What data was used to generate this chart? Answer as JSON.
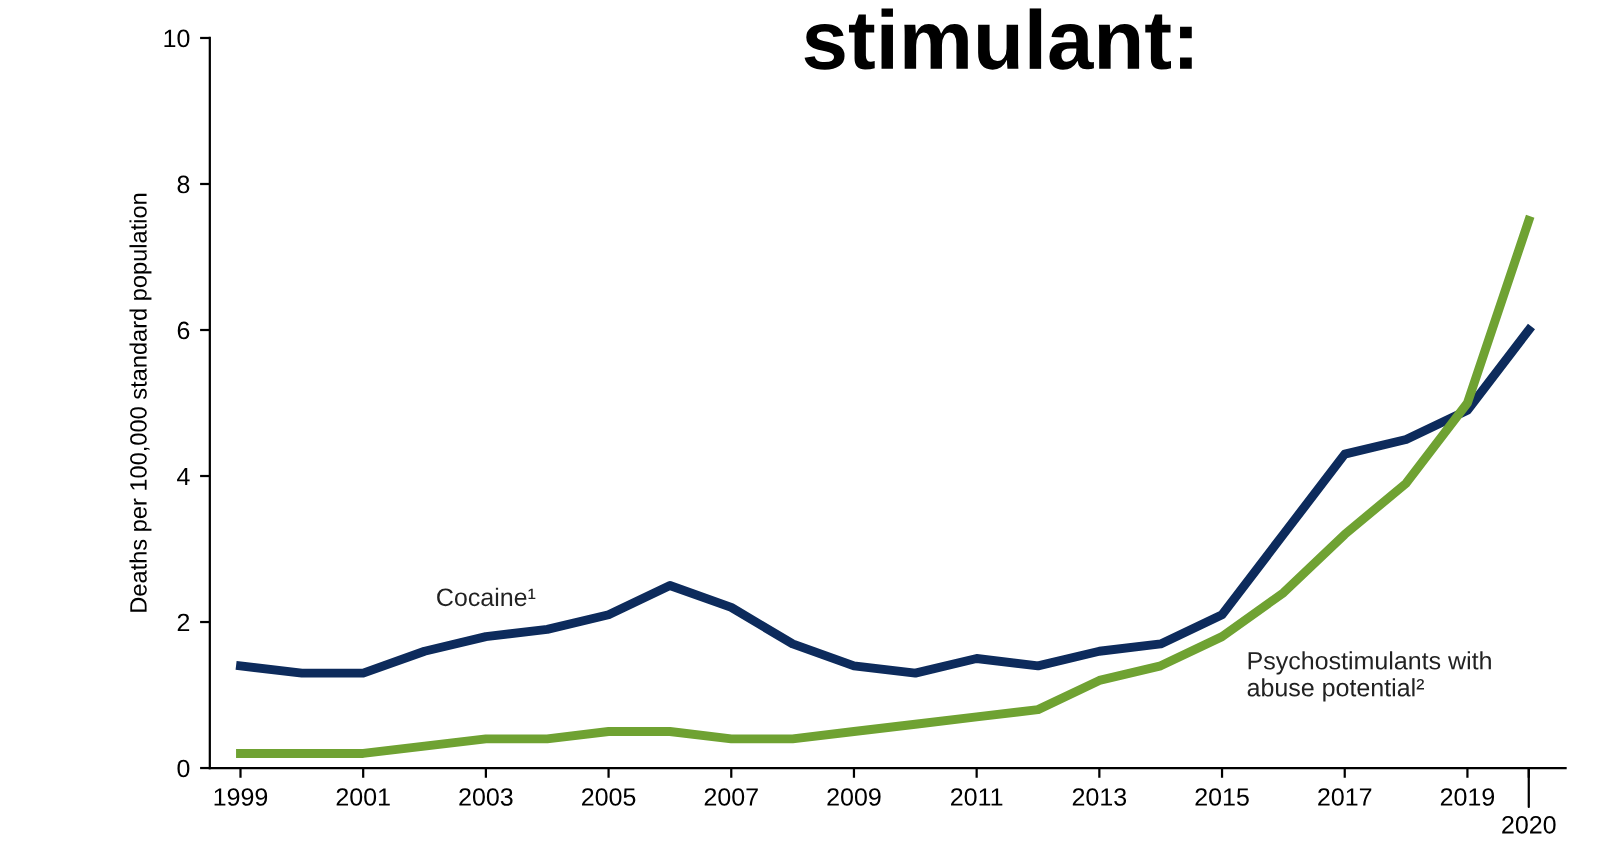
{
  "chart_data": {
    "type": "line",
    "title": "stimulant:",
    "ylabel": "Deaths per 100,000 standard population",
    "x": [
      1999,
      2000,
      2001,
      2002,
      2003,
      2004,
      2005,
      2006,
      2007,
      2008,
      2009,
      2010,
      2011,
      2012,
      2013,
      2014,
      2015,
      2016,
      2017,
      2018,
      2019,
      2020
    ],
    "series": [
      {
        "name": "Cocaine¹",
        "color": "#0d2b5c",
        "values": [
          1.4,
          1.3,
          1.3,
          1.6,
          1.8,
          1.9,
          2.1,
          2.5,
          2.2,
          1.7,
          1.4,
          1.3,
          1.5,
          1.4,
          1.6,
          1.7,
          2.1,
          3.2,
          4.3,
          4.5,
          4.9,
          6.0
        ]
      },
      {
        "name": "Psychostimulants with\nabuse potential²",
        "color": "#6fa232",
        "values": [
          0.2,
          0.2,
          0.2,
          0.3,
          0.4,
          0.4,
          0.5,
          0.5,
          0.4,
          0.4,
          0.5,
          0.6,
          0.7,
          0.8,
          1.2,
          1.4,
          1.8,
          2.4,
          3.2,
          3.9,
          5.0,
          7.5
        ]
      }
    ],
    "xlim": [
      1998.5,
      2020.6
    ],
    "xticks": [
      1999,
      2001,
      2003,
      2005,
      2007,
      2009,
      2011,
      2013,
      2015,
      2017,
      2019,
      {
        "value": 2020,
        "label": null
      }
    ],
    "annotations": [
      "2020"
    ],
    "ylim": [
      0,
      10
    ],
    "yticks": [
      0,
      2,
      4,
      6,
      8,
      10
    ],
    "grid": false,
    "legend": false,
    "marker": "none",
    "line_style": "solid"
  }
}
